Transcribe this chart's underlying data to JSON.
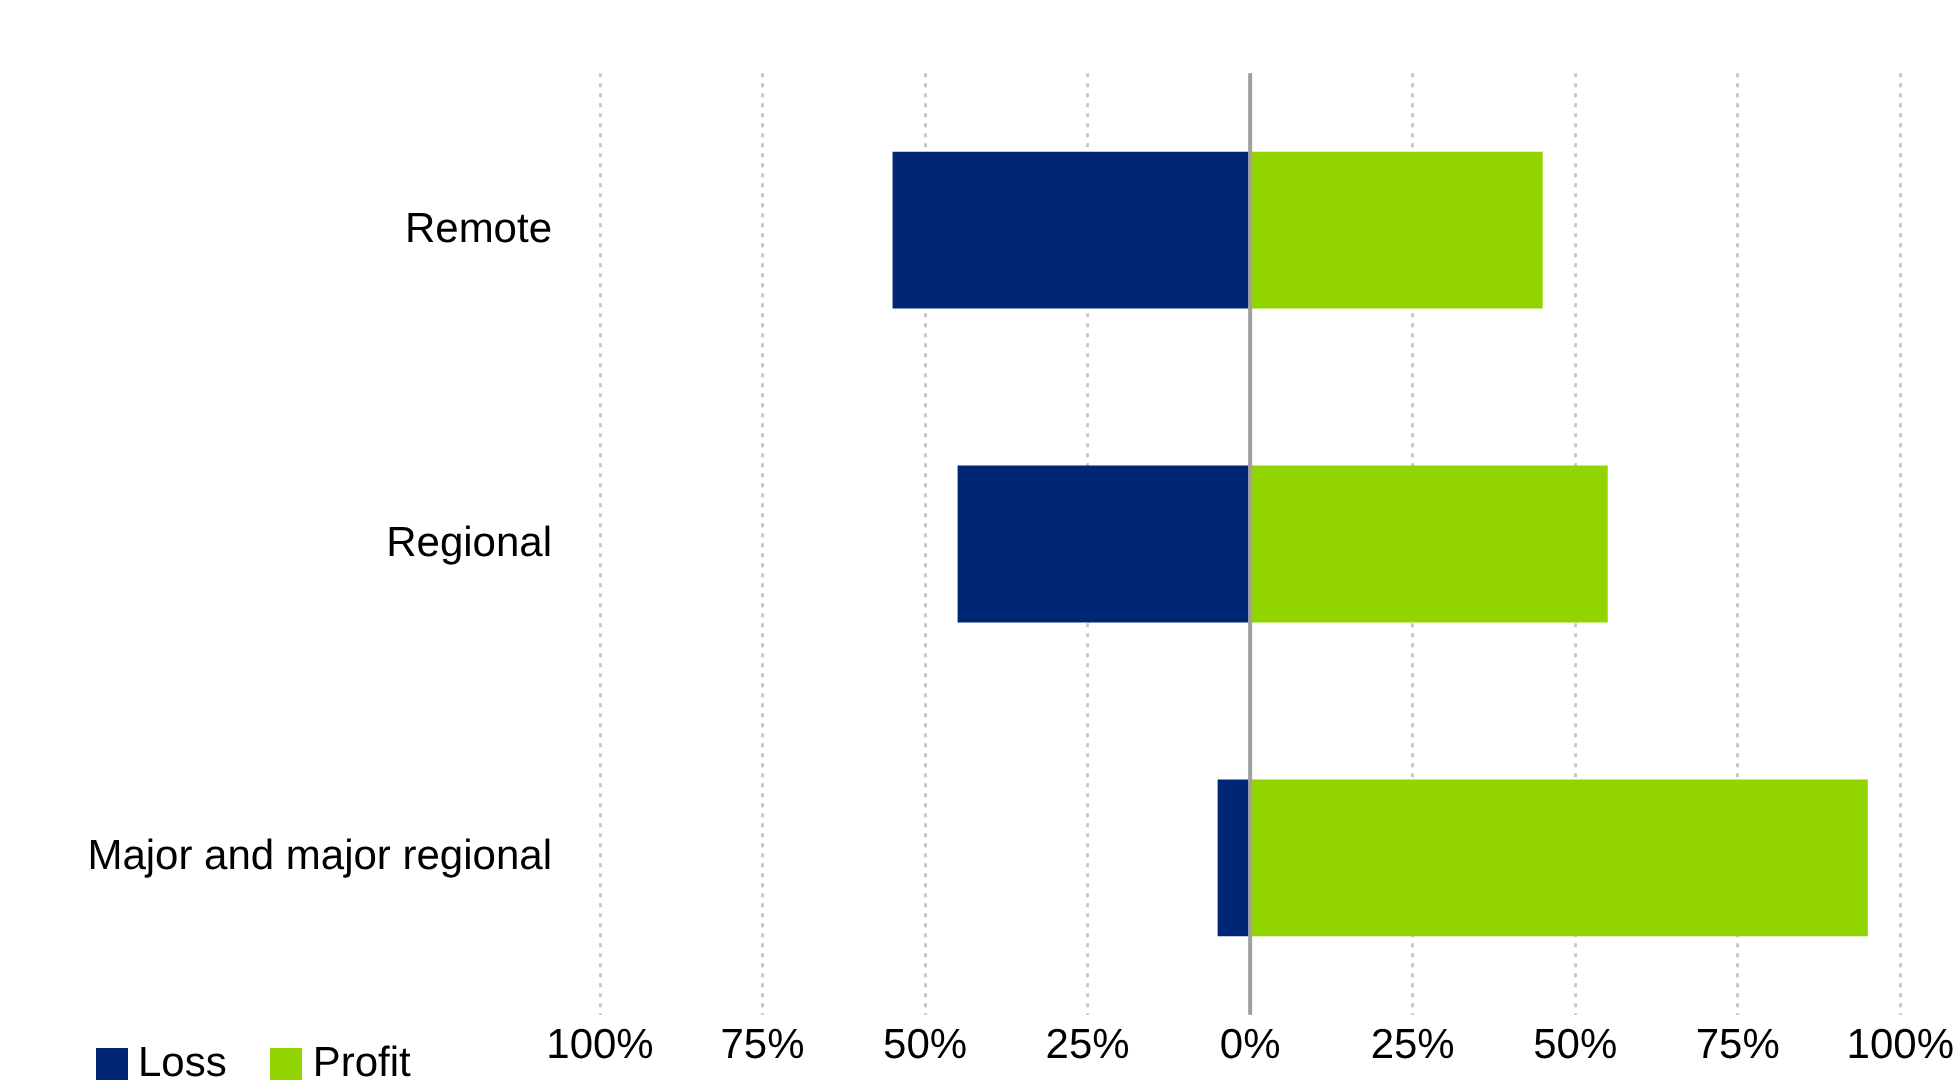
{
  "chart_data": {
    "type": "bar",
    "orientation": "horizontal",
    "stacked": true,
    "categories": [
      "Remote",
      "Regional",
      "Major and major regional"
    ],
    "series": [
      {
        "name": "Loss",
        "color": "#002776",
        "values": [
          -55,
          -45,
          -5
        ]
      },
      {
        "name": "Profit",
        "color": "#92d400",
        "values": [
          45,
          55,
          95
        ]
      }
    ],
    "xlim": [
      -100,
      100
    ],
    "xticks": [
      {
        "value": -100,
        "label": "100%"
      },
      {
        "value": -75,
        "label": "75%"
      },
      {
        "value": -50,
        "label": "50%"
      },
      {
        "value": -25,
        "label": "25%"
      },
      {
        "value": 0,
        "label": "0%"
      },
      {
        "value": 25,
        "label": "25%"
      },
      {
        "value": 50,
        "label": "50%"
      },
      {
        "value": 75,
        "label": "75%"
      },
      {
        "value": 100,
        "label": "100%"
      }
    ],
    "ref_lines": [
      {
        "axis": "x",
        "value": 0,
        "color": "#a0a0a0"
      }
    ],
    "grid": "x",
    "legend": "bottom left"
  }
}
